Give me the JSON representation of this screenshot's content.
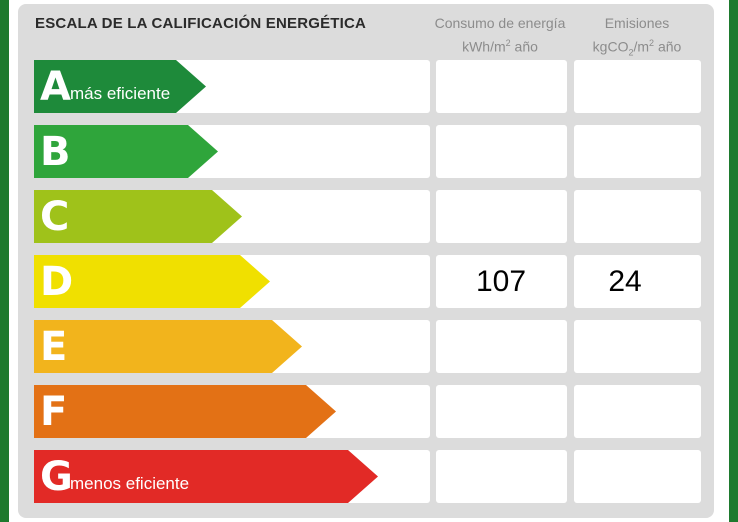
{
  "title": "ESCALA DE LA CALIFICACIÓN ENERGÉTICA",
  "columns": {
    "consumo": {
      "line1": "Consumo de energía",
      "unit_pre": "kWh/m",
      "unit_sup": "2",
      "unit_post": " año"
    },
    "emisiones": {
      "line1": "Emisiones",
      "unit_pre": "kgCO",
      "unit_sub": "2",
      "unit_mid": "/m",
      "unit_sup": "2",
      "unit_post": " año"
    }
  },
  "ratings": [
    {
      "letter": "A",
      "label": "más eficiente",
      "color": "#1e8a3a",
      "consumo": "",
      "emisiones": ""
    },
    {
      "letter": "B",
      "label": "",
      "color": "#2fa53b",
      "consumo": "",
      "emisiones": ""
    },
    {
      "letter": "C",
      "label": "",
      "color": "#9fc21a",
      "consumo": "",
      "emisiones": ""
    },
    {
      "letter": "D",
      "label": "",
      "color": "#f0e000",
      "consumo": "107",
      "emisiones": "24"
    },
    {
      "letter": "E",
      "label": "",
      "color": "#f2b41c",
      "consumo": "",
      "emisiones": ""
    },
    {
      "letter": "F",
      "label": "",
      "color": "#e37115",
      "consumo": "",
      "emisiones": ""
    },
    {
      "letter": "G",
      "label": "menos eficiente",
      "color": "#e22a26",
      "consumo": "",
      "emisiones": ""
    }
  ],
  "colors": {
    "frame": "#1e7a2e",
    "panel": "#dcdcdc"
  }
}
